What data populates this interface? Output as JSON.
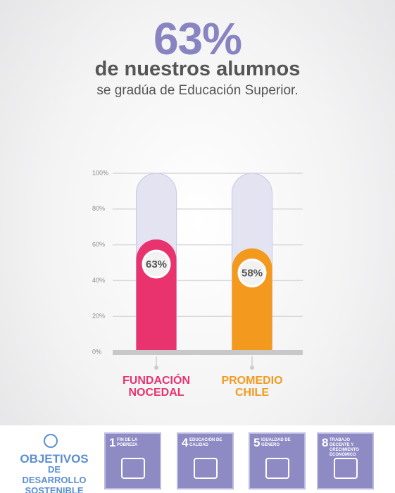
{
  "header": {
    "big": "63%",
    "line1": "de nuestros alumnos",
    "line2": "se gradúa de Educación Superior."
  },
  "chart_data": {
    "type": "bar",
    "categories": [
      "FUNDACIÓN NOCEDAL",
      "PROMEDIO CHILE"
    ],
    "values": [
      63,
      58
    ],
    "value_labels": [
      "63%",
      "58%"
    ],
    "colors": [
      "#e8336e",
      "#f39a1e"
    ],
    "track_color": "#e3e3f2",
    "ylim": [
      0,
      100
    ],
    "yticks": [
      {
        "value": 0,
        "label": "0%"
      },
      {
        "value": 20,
        "label": "20%"
      },
      {
        "value": 40,
        "label": "40%"
      },
      {
        "value": 60,
        "label": "60%"
      },
      {
        "value": 80,
        "label": "80%"
      },
      {
        "value": 100,
        "label": "100%"
      }
    ],
    "grid": true
  },
  "footer": {
    "logo": [
      "OBJETIVOS",
      "DE DESARROLLO",
      "SOSTENIBLE"
    ],
    "goals": [
      {
        "number": "1",
        "label": "FIN DE LA POBREZA"
      },
      {
        "number": "4",
        "label": "EDUCACIÓN DE CALIDAD"
      },
      {
        "number": "5",
        "label": "IGUALDAD DE GÉNERO"
      },
      {
        "number": "8",
        "label": "TRABAJO DECENTE Y CRECIMIENTO ECONÓMICO"
      }
    ]
  }
}
